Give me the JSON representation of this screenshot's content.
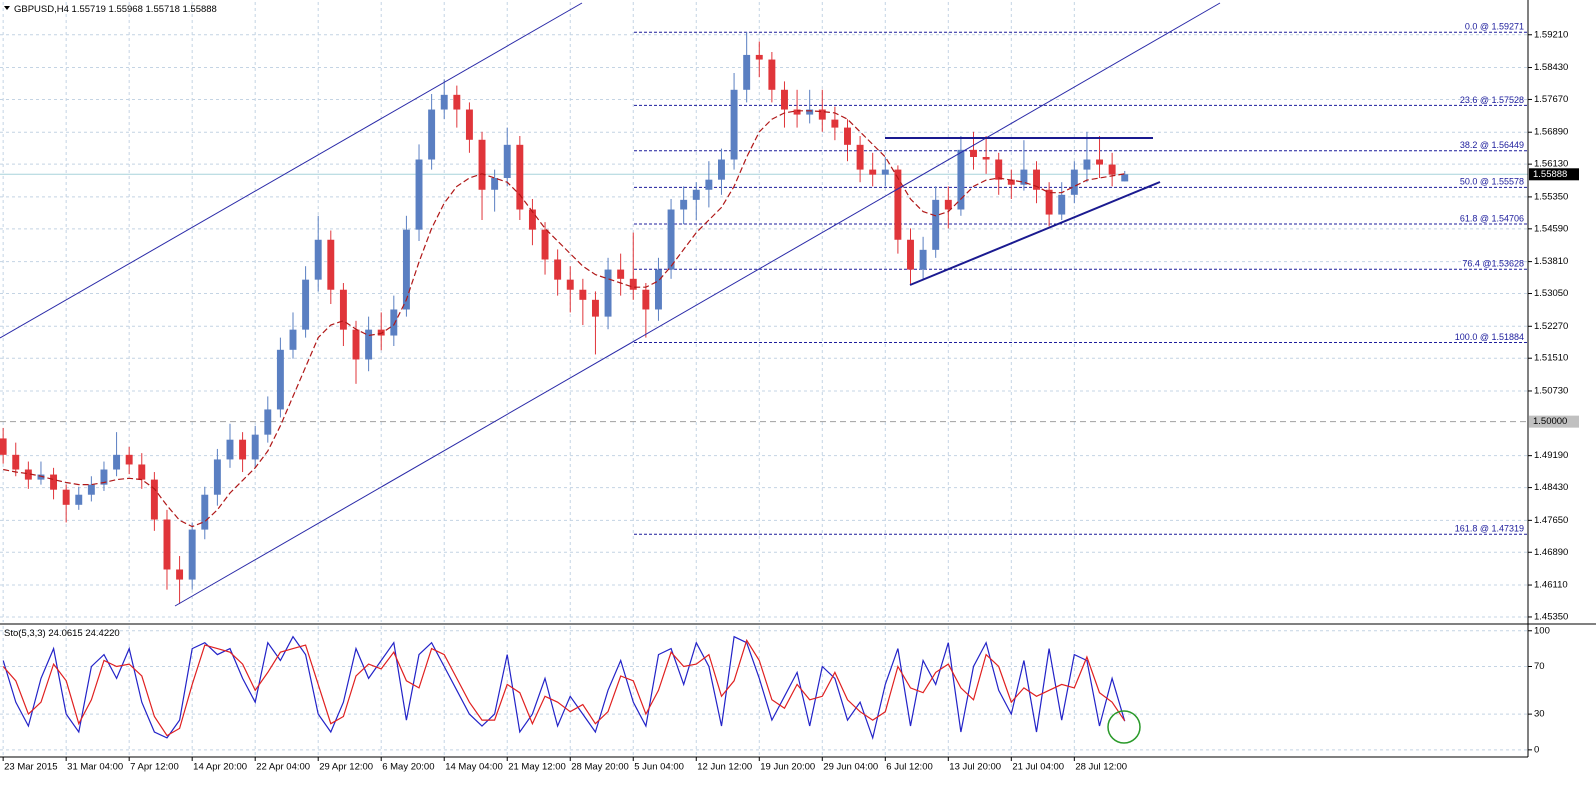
{
  "chart_data": {
    "type": "candlestick",
    "symbol": "GBPUSD,H4",
    "grid": true,
    "xlim": [
      -0.25,
      121
    ],
    "xticks": [
      {
        "value": 0,
        "label": "23 Mar 2015"
      },
      {
        "value": 5,
        "label": "31 Mar 04:00"
      },
      {
        "value": 10,
        "label": "7 Apr 12:00"
      },
      {
        "value": 15,
        "label": "14 Apr 20:00"
      },
      {
        "value": 20,
        "label": "22 Apr 04:00"
      },
      {
        "value": 25,
        "label": "29 Apr 12:00"
      },
      {
        "value": 30,
        "label": "6 May 20:00"
      },
      {
        "value": 35,
        "label": "14 May 04:00"
      },
      {
        "value": 40,
        "label": "21 May 12:00"
      },
      {
        "value": 45,
        "label": "28 May 20:00"
      },
      {
        "value": 50,
        "label": "5 Jun 04:00"
      },
      {
        "value": 55,
        "label": "12 Jun 12:00"
      },
      {
        "value": 60,
        "label": "19 Jun 20:00"
      },
      {
        "value": 65,
        "label": "29 Jun 04:00"
      },
      {
        "value": 70,
        "label": "6 Jul 12:00"
      },
      {
        "value": 75,
        "label": "13 Jul 20:00"
      },
      {
        "value": 80,
        "label": "21 Jul 04:00"
      },
      {
        "value": 85,
        "label": "28 Jul 12:00"
      }
    ],
    "ylim": [
      1.4523,
      1.5999
    ],
    "yticks": [
      {
        "value": 1.5921,
        "label": "1.59210"
      },
      {
        "value": 1.5843,
        "label": "1.58430"
      },
      {
        "value": 1.5767,
        "label": "1.57670"
      },
      {
        "value": 1.5689,
        "label": "1.56890"
      },
      {
        "value": 1.5613,
        "label": "1.56130"
      },
      {
        "value": 1.5535,
        "label": "1.55350"
      },
      {
        "value": 1.5459,
        "label": "1.54590"
      },
      {
        "value": 1.5381,
        "label": "1.53810"
      },
      {
        "value": 1.5305,
        "label": "1.53050"
      },
      {
        "value": 1.5227,
        "label": "1.52270"
      },
      {
        "value": 1.5151,
        "label": "1.51510"
      },
      {
        "value": 1.5073,
        "label": "1.50730"
      },
      {
        "value": 1.4919,
        "label": "1.49190"
      },
      {
        "value": 1.4843,
        "label": "1.48430"
      },
      {
        "value": 1.4765,
        "label": "1.47650"
      },
      {
        "value": 1.4689,
        "label": "1.46890"
      },
      {
        "value": 1.4611,
        "label": "1.46110"
      },
      {
        "value": 1.4535,
        "label": "1.45350"
      }
    ],
    "level_line": {
      "value": 1.5,
      "label": "1.50000"
    },
    "candles": {
      "up_color": "#5a7fc2",
      "down_color": "#e0353a",
      "values": [
        [
          1.496,
          1.4985,
          1.49,
          1.4921
        ],
        [
          1.4921,
          1.495,
          1.487,
          1.4886
        ],
        [
          1.4886,
          1.4905,
          1.484,
          1.4862
        ],
        [
          1.4862,
          1.4905,
          1.485,
          1.4874
        ],
        [
          1.4874,
          1.489,
          1.4815,
          1.4838
        ],
        [
          1.4838,
          1.485,
          1.476,
          1.4802
        ],
        [
          1.4802,
          1.4845,
          1.479,
          1.4826
        ],
        [
          1.4826,
          1.487,
          1.481,
          1.485
        ],
        [
          1.485,
          1.4905,
          1.4835,
          1.4886
        ],
        [
          1.4886,
          1.4975,
          1.487,
          1.4921
        ],
        [
          1.4921,
          1.494,
          1.4875,
          1.4898
        ],
        [
          1.4898,
          1.4925,
          1.484,
          1.4862
        ],
        [
          1.4862,
          1.488,
          1.474,
          1.4767
        ],
        [
          1.4767,
          1.479,
          1.46,
          1.4648
        ],
        [
          1.4648,
          1.468,
          1.4566,
          1.4624
        ],
        [
          1.4624,
          1.476,
          1.46,
          1.4743
        ],
        [
          1.4743,
          1.4845,
          1.472,
          1.4826
        ],
        [
          1.4826,
          1.4935,
          1.48,
          1.491
        ],
        [
          1.491,
          1.4995,
          1.489,
          1.4957
        ],
        [
          1.4957,
          1.4975,
          1.488,
          1.491
        ],
        [
          1.491,
          1.499,
          1.489,
          1.4969
        ],
        [
          1.4969,
          1.506,
          1.495,
          1.5029
        ],
        [
          1.5029,
          1.52,
          1.501,
          1.5171
        ],
        [
          1.5171,
          1.526,
          1.515,
          1.5219
        ],
        [
          1.5219,
          1.537,
          1.52,
          1.5338
        ],
        [
          1.5338,
          1.549,
          1.531,
          1.5433
        ],
        [
          1.5433,
          1.5455,
          1.528,
          1.5314
        ],
        [
          1.5314,
          1.533,
          1.518,
          1.5219
        ],
        [
          1.5219,
          1.524,
          1.509,
          1.5148
        ],
        [
          1.5148,
          1.525,
          1.512,
          1.5219
        ],
        [
          1.5219,
          1.526,
          1.517,
          1.5205
        ],
        [
          1.5205,
          1.53,
          1.518,
          1.5267
        ],
        [
          1.5267,
          1.549,
          1.525,
          1.5457
        ],
        [
          1.5457,
          1.566,
          1.543,
          1.5624
        ],
        [
          1.5624,
          1.578,
          1.56,
          1.5743
        ],
        [
          1.5743,
          1.5815,
          1.572,
          1.5778
        ],
        [
          1.5778,
          1.58,
          1.57,
          1.5743
        ],
        [
          1.5743,
          1.576,
          1.564,
          1.5671
        ],
        [
          1.5671,
          1.569,
          1.548,
          1.5552
        ],
        [
          1.5552,
          1.56,
          1.55,
          1.558
        ],
        [
          1.558,
          1.57,
          1.556,
          1.5659
        ],
        [
          1.5659,
          1.568,
          1.548,
          1.5505
        ],
        [
          1.5505,
          1.553,
          1.542,
          1.5457
        ],
        [
          1.5457,
          1.5475,
          1.535,
          1.5386
        ],
        [
          1.5386,
          1.541,
          1.53,
          1.5338
        ],
        [
          1.5338,
          1.537,
          1.526,
          1.5314
        ],
        [
          1.5314,
          1.534,
          1.523,
          1.529
        ],
        [
          1.529,
          1.531,
          1.516,
          1.525
        ],
        [
          1.525,
          1.539,
          1.522,
          1.5362
        ],
        [
          1.5362,
          1.54,
          1.53,
          1.534
        ],
        [
          1.534,
          1.545,
          1.529,
          1.5314
        ],
        [
          1.5314,
          1.533,
          1.52,
          1.5267
        ],
        [
          1.5267,
          1.539,
          1.524,
          1.5362
        ],
        [
          1.5362,
          1.553,
          1.534,
          1.5505
        ],
        [
          1.5505,
          1.556,
          1.547,
          1.5528
        ],
        [
          1.5528,
          1.557,
          1.548,
          1.5552
        ],
        [
          1.5552,
          1.562,
          1.551,
          1.5576
        ],
        [
          1.5576,
          1.565,
          1.554,
          1.5624
        ],
        [
          1.5624,
          1.583,
          1.56,
          1.579
        ],
        [
          1.579,
          1.5927,
          1.576,
          1.5873
        ],
        [
          1.5873,
          1.5905,
          1.582,
          1.5862
        ],
        [
          1.5862,
          1.588,
          1.576,
          1.579
        ],
        [
          1.579,
          1.581,
          1.57,
          1.5743
        ],
        [
          1.5743,
          1.579,
          1.57,
          1.5731
        ],
        [
          1.5731,
          1.579,
          1.571,
          1.5743
        ],
        [
          1.5743,
          1.579,
          1.569,
          1.5719
        ],
        [
          1.5719,
          1.575,
          1.567,
          1.57
        ],
        [
          1.57,
          1.572,
          1.562,
          1.5659
        ],
        [
          1.5659,
          1.568,
          1.557,
          1.56
        ],
        [
          1.56,
          1.564,
          1.556,
          1.5588
        ],
        [
          1.5588,
          1.563,
          1.556,
          1.56
        ],
        [
          1.56,
          1.561,
          1.54,
          1.5433
        ],
        [
          1.5433,
          1.546,
          1.5326,
          1.5362
        ],
        [
          1.5362,
          1.544,
          1.534,
          1.5409
        ],
        [
          1.5409,
          1.556,
          1.539,
          1.5528
        ],
        [
          1.5528,
          1.556,
          1.546,
          1.5505
        ],
        [
          1.5505,
          1.568,
          1.549,
          1.5647
        ],
        [
          1.5647,
          1.569,
          1.56,
          1.563
        ],
        [
          1.563,
          1.568,
          1.559,
          1.5624
        ],
        [
          1.5624,
          1.564,
          1.554,
          1.5576
        ],
        [
          1.5576,
          1.56,
          1.553,
          1.5564
        ],
        [
          1.5564,
          1.567,
          1.555,
          1.56
        ],
        [
          1.56,
          1.562,
          1.552,
          1.5552
        ],
        [
          1.5552,
          1.557,
          1.5465,
          1.5493
        ],
        [
          1.5493,
          1.557,
          1.548,
          1.554
        ],
        [
          1.554,
          1.562,
          1.552,
          1.56
        ],
        [
          1.56,
          1.569,
          1.557,
          1.5624
        ],
        [
          1.5624,
          1.568,
          1.558,
          1.5612
        ],
        [
          1.5612,
          1.564,
          1.556,
          1.5588
        ],
        [
          1.55719,
          1.55968,
          1.55718,
          1.55888
        ]
      ]
    },
    "ma": {
      "color": "#b01818",
      "dashed": true,
      "values": [
        1.4886,
        1.488,
        1.4876,
        1.487,
        1.4862,
        1.4855,
        1.485,
        1.485,
        1.4855,
        1.4862,
        1.4865,
        1.4862,
        1.484,
        1.48,
        1.4765,
        1.475,
        1.4762,
        1.479,
        1.483,
        1.486,
        1.489,
        1.493,
        1.499,
        1.506,
        1.513,
        1.52,
        1.523,
        1.524,
        1.522,
        1.5205,
        1.521,
        1.523,
        1.529,
        1.538,
        1.546,
        1.552,
        1.556,
        1.558,
        1.559,
        1.558,
        1.557,
        1.554,
        1.55,
        1.546,
        1.543,
        1.54,
        1.537,
        1.535,
        1.534,
        1.533,
        1.532,
        1.532,
        1.5335,
        1.537,
        1.541,
        1.545,
        1.548,
        1.551,
        1.556,
        1.563,
        1.569,
        1.572,
        1.5735,
        1.574,
        1.574,
        1.5738,
        1.5735,
        1.572,
        1.569,
        1.566,
        1.563,
        1.558,
        1.553,
        1.55,
        1.549,
        1.55,
        1.553,
        1.556,
        1.5575,
        1.558,
        1.5575,
        1.557,
        1.556,
        1.5545,
        1.5545,
        1.556,
        1.5575,
        1.558,
        1.5585,
        1.559
      ]
    },
    "fibonacci": {
      "color": "#1c1c9c",
      "levels": [
        {
          "value": 1.59271,
          "label": "0.0 @ 1.59271"
        },
        {
          "value": 1.57528,
          "label": "23.6 @ 1.57528"
        },
        {
          "value": 1.56449,
          "label": "38.2 @ 1.56449"
        },
        {
          "value": 1.55578,
          "label": "50.0 @ 1.55578"
        },
        {
          "value": 1.54706,
          "label": "61.8 @ 1.54706"
        },
        {
          "value": 1.53628,
          "label": "76.4 @1.53628"
        },
        {
          "value": 1.51884,
          "label": "100.0 @ 1.51884"
        },
        {
          "value": 1.47319,
          "label": "161.8 @ 1.47319"
        }
      ]
    },
    "indicator": {
      "type": "line",
      "name": "Sto(5,3,3)",
      "readings": [
        24.0615,
        {
          "value": 24.422,
          "label": "24.4220"
        }
      ],
      "ylim": [
        -6,
        104
      ],
      "yticks": [
        100,
        70,
        30,
        0
      ],
      "series": [
        {
          "color": "#2323c8",
          "values": [
            75,
            40,
            20,
            60,
            85,
            30,
            15,
            70,
            80,
            60,
            85,
            40,
            15,
            10,
            25,
            85,
            90,
            80,
            85,
            60,
            40,
            90,
            75,
            95,
            80,
            30,
            15,
            40,
            85,
            60,
            75,
            90,
            25,
            80,
            90,
            70,
            50,
            30,
            20,
            30,
            80,
            15,
            30,
            60,
            20,
            45,
            30,
            15,
            50,
            75,
            40,
            20,
            80,
            85,
            55,
            90,
            70,
            20,
            95,
            90,
            60,
            25,
            45,
            65,
            20,
            70,
            60,
            25,
            40,
            10,
            55,
            85,
            20,
            75,
            55,
            90,
            15,
            70,
            90,
            50,
            30,
            75,
            15,
            85,
            25,
            80,
            75,
            20,
            60,
            24.0615
          ]
        },
        {
          "color": "#e02020",
          "values": [
            70,
            58,
            30,
            40,
            72,
            58,
            22,
            42,
            75,
            70,
            72,
            62,
            28,
            12,
            18,
            55,
            88,
            85,
            82,
            72,
            50,
            65,
            82,
            85,
            88,
            55,
            22,
            28,
            62,
            72,
            68,
            82,
            58,
            52,
            85,
            80,
            60,
            40,
            25,
            25,
            55,
            48,
            22,
            45,
            40,
            32,
            38,
            22,
            32,
            62,
            58,
            30,
            50,
            82,
            70,
            72,
            80,
            45,
            58,
            92,
            75,
            42,
            35,
            55,
            42,
            45,
            65,
            42,
            32,
            25,
            32,
            70,
            52,
            48,
            65,
            72,
            52,
            42,
            80,
            70,
            40,
            52,
            45,
            50,
            55,
            52,
            78,
            48,
            40,
            24.422
          ]
        }
      ]
    }
  }
}
